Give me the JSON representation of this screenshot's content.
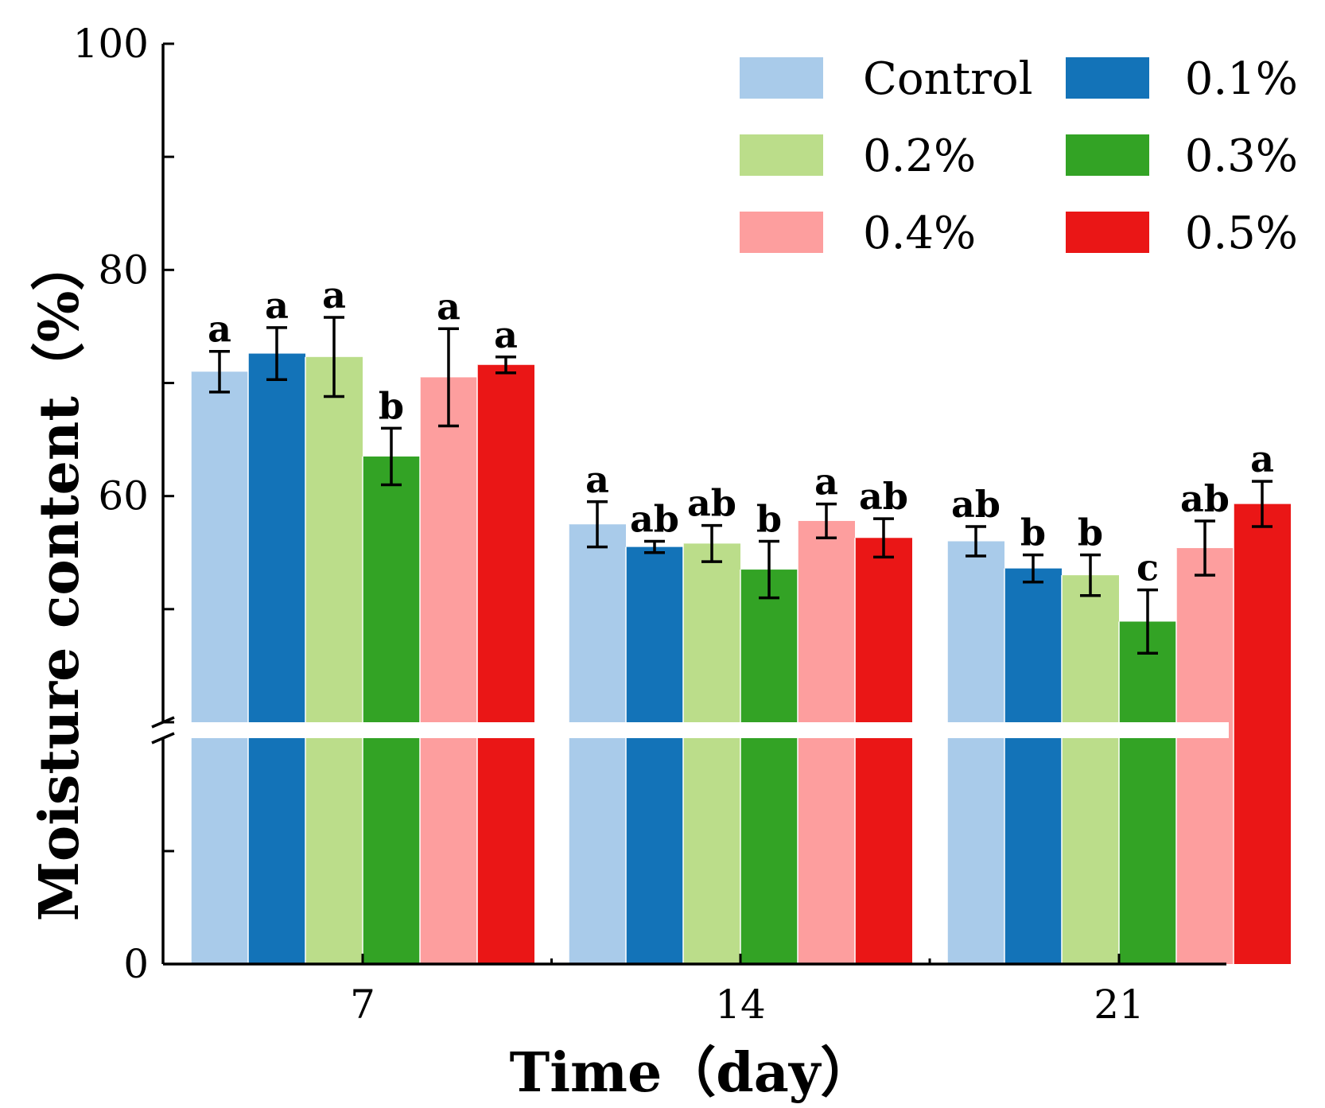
{
  "chart_data": {
    "type": "bar",
    "xlabel": "Time（day）",
    "ylabel": "Moisture content（%）",
    "categories": [
      "7",
      "14",
      "21"
    ],
    "y_ticks_upper": [
      "100",
      "80",
      "60"
    ],
    "y_tick_zero": "0",
    "ylim_upper": [
      40,
      100
    ],
    "ylim_lower": [
      0,
      40
    ],
    "axis_break": true,
    "legend_position": "top-right",
    "series": [
      {
        "name": "Control",
        "color": "#a9cbea",
        "values": [
          71.0,
          57.5,
          56.0
        ],
        "errors": [
          1.8,
          2.0,
          1.3
        ],
        "letters": [
          "a",
          "a",
          "ab"
        ]
      },
      {
        "name": "0.1%",
        "color": "#1373b8",
        "values": [
          72.6,
          55.5,
          53.6
        ],
        "errors": [
          2.3,
          0.5,
          1.2
        ],
        "letters": [
          "a",
          "ab",
          "b"
        ]
      },
      {
        "name": "0.2%",
        "color": "#bbdd8a",
        "values": [
          72.3,
          55.8,
          53.0
        ],
        "errors": [
          3.5,
          1.6,
          1.8
        ],
        "letters": [
          "a",
          "ab",
          "b"
        ]
      },
      {
        "name": "0.3%",
        "color": "#33a325",
        "values": [
          63.5,
          53.5,
          48.9
        ],
        "errors": [
          2.5,
          2.5,
          2.8
        ],
        "letters": [
          "b",
          "b",
          "c"
        ]
      },
      {
        "name": "0.4%",
        "color": "#fd9e9e",
        "values": [
          70.5,
          57.8,
          55.4
        ],
        "errors": [
          4.3,
          1.5,
          2.4
        ],
        "letters": [
          "a",
          "a",
          "ab"
        ]
      },
      {
        "name": "0.5%",
        "color": "#ea1616",
        "values": [
          71.6,
          56.3,
          59.3
        ],
        "errors": [
          0.7,
          1.7,
          2.0
        ],
        "letters": [
          "a",
          "ab",
          "a"
        ]
      }
    ]
  }
}
